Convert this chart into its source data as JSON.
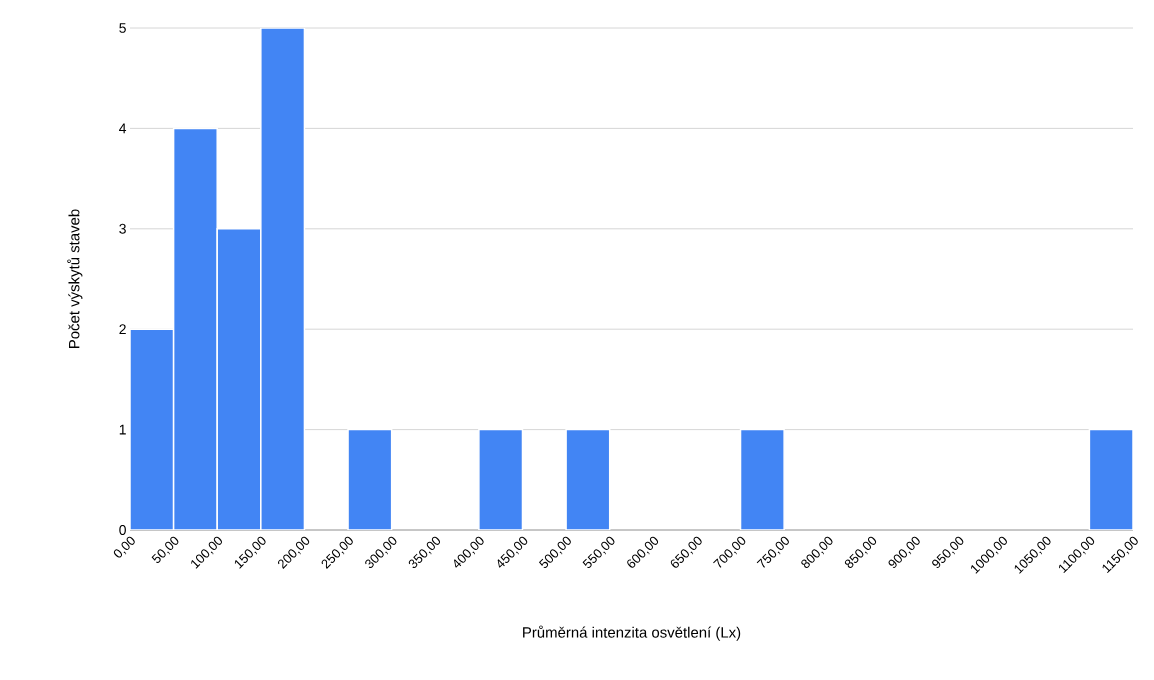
{
  "chart_data": {
    "type": "histogram",
    "xlabel": "Průměrná intenzita osvětlení (Lx)",
    "ylabel": "Počet výskytů staveb",
    "bins": [
      0,
      50,
      100,
      150,
      200,
      250,
      300,
      350,
      400,
      450,
      500,
      550,
      600,
      650,
      700,
      750,
      800,
      850,
      900,
      950,
      1000,
      1050,
      1100,
      1150
    ],
    "values": [
      2,
      4,
      3,
      5,
      0,
      1,
      0,
      0,
      1,
      0,
      1,
      0,
      0,
      0,
      1,
      0,
      0,
      0,
      0,
      0,
      0,
      0,
      1
    ],
    "color": "#4285f4",
    "xlim": [
      0,
      1150
    ],
    "xticks": [
      {
        "value": 0,
        "label": "0,00"
      },
      {
        "value": 50,
        "label": "50,00"
      },
      {
        "value": 100,
        "label": "100,00"
      },
      {
        "value": 150,
        "label": "150,00"
      },
      {
        "value": 200,
        "label": "200,00"
      },
      {
        "value": 250,
        "label": "250,00"
      },
      {
        "value": 300,
        "label": "300,00"
      },
      {
        "value": 350,
        "label": "350,00"
      },
      {
        "value": 400,
        "label": "400,00"
      },
      {
        "value": 450,
        "label": "450,00"
      },
      {
        "value": 500,
        "label": "500,00"
      },
      {
        "value": 550,
        "label": "550,00"
      },
      {
        "value": 600,
        "label": "600,00"
      },
      {
        "value": 650,
        "label": "650,00"
      },
      {
        "value": 700,
        "label": "700,00"
      },
      {
        "value": 750,
        "label": "750,00"
      },
      {
        "value": 800,
        "label": "800,00"
      },
      {
        "value": 850,
        "label": "850,00"
      },
      {
        "value": 900,
        "label": "900,00"
      },
      {
        "value": 950,
        "label": "950,00"
      },
      {
        "value": 1000,
        "label": "1000,00"
      },
      {
        "value": 1050,
        "label": "1050,00"
      },
      {
        "value": 1100,
        "label": "1100,00"
      },
      {
        "value": 1150,
        "label": "1150,00"
      }
    ],
    "ylim": [
      0,
      5
    ],
    "yticks": [
      0,
      1,
      2,
      3,
      4,
      5
    ],
    "grid": "y"
  }
}
